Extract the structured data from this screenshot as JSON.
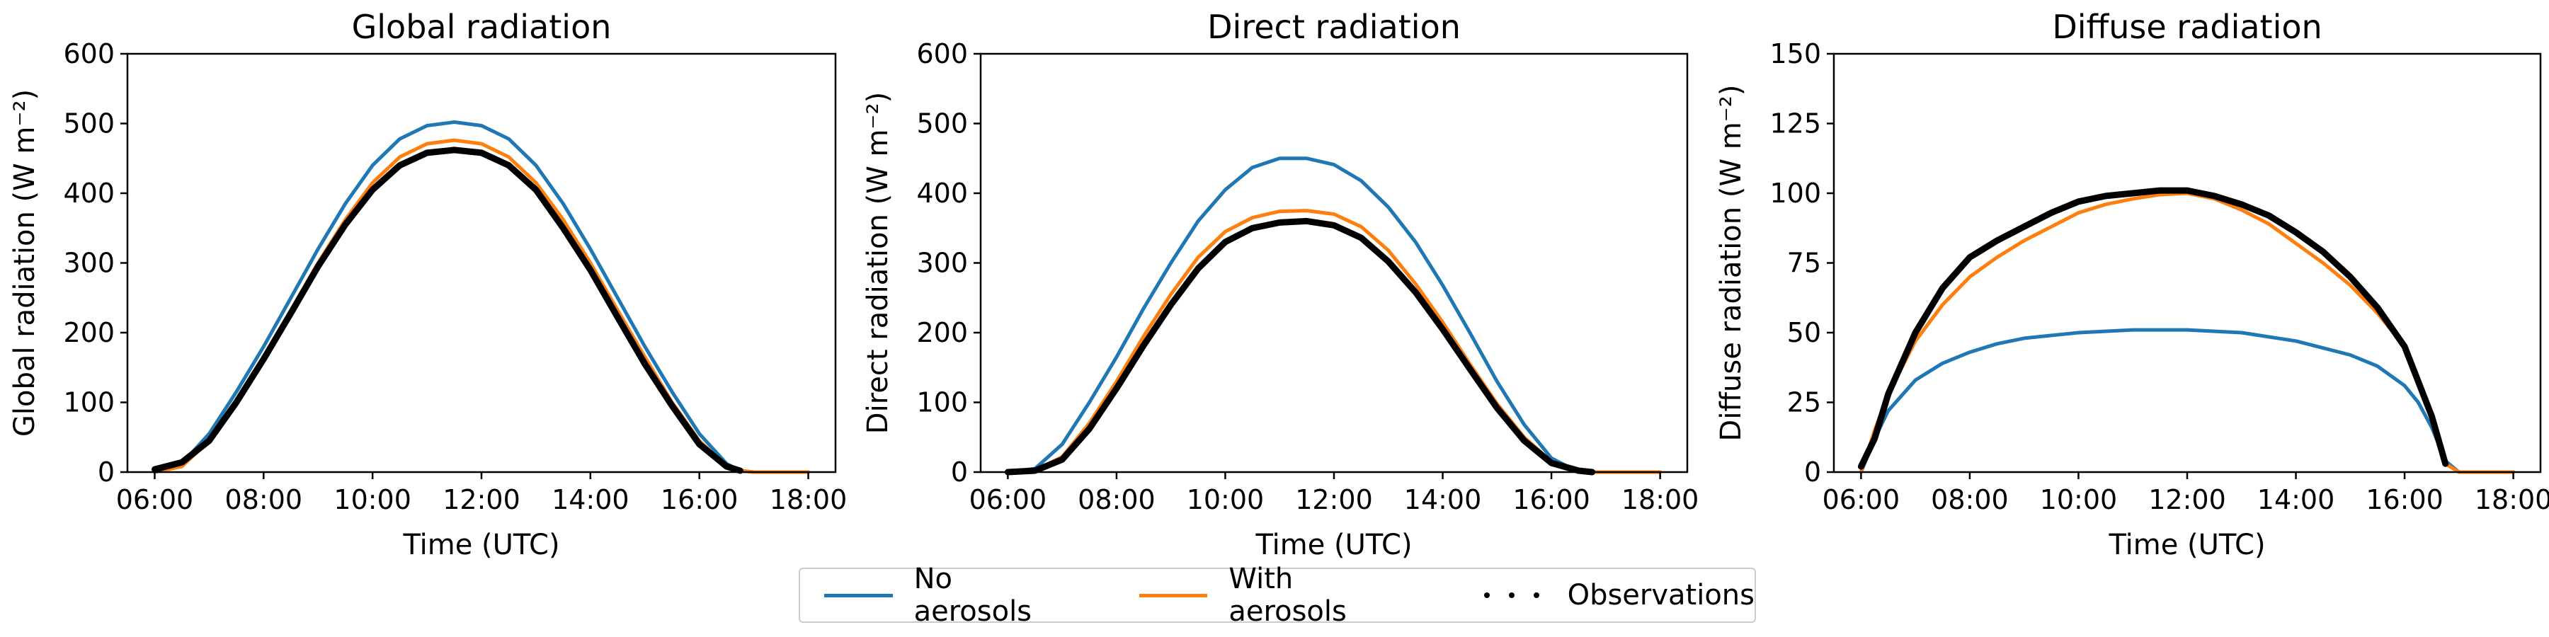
{
  "legend": {
    "entries": [
      {
        "label": "No aerosols",
        "color": "#1f77b4",
        "style": "line"
      },
      {
        "label": "With aerosols",
        "color": "#ff7f0e",
        "style": "line"
      },
      {
        "label": "Observations",
        "color": "#000000",
        "style": "dotted"
      }
    ]
  },
  "chart_data": [
    {
      "type": "line",
      "title": "Global radiation",
      "xlabel": "Time (UTC)",
      "ylabel": "Global radiation (W m⁻²)",
      "xlim": [
        "05:30",
        "18:30"
      ],
      "ylim": [
        0,
        600
      ],
      "xticks": [
        "06:00",
        "08:00",
        "10:00",
        "12:00",
        "14:00",
        "16:00",
        "18:00"
      ],
      "yticks": [
        0,
        100,
        200,
        300,
        400,
        500,
        600
      ],
      "grid": false,
      "series": [
        {
          "name": "No aerosols",
          "color": "#1f77b4",
          "x": [
            "06:00",
            "06:30",
            "07:00",
            "07:30",
            "08:00",
            "08:30",
            "09:00",
            "09:30",
            "10:00",
            "10:30",
            "11:00",
            "11:30",
            "12:00",
            "12:30",
            "13:00",
            "13:30",
            "14:00",
            "14:30",
            "15:00",
            "15:30",
            "16:00",
            "16:30",
            "16:45",
            "17:00",
            "18:00"
          ],
          "y": [
            0,
            12,
            55,
            115,
            180,
            250,
            320,
            385,
            440,
            478,
            497,
            502,
            497,
            478,
            440,
            385,
            320,
            250,
            180,
            115,
            55,
            12,
            2,
            0,
            0
          ]
        },
        {
          "name": "With aerosols",
          "color": "#ff7f0e",
          "x": [
            "06:00",
            "06:30",
            "07:00",
            "07:30",
            "08:00",
            "08:30",
            "09:00",
            "09:30",
            "10:00",
            "10:30",
            "11:00",
            "11:30",
            "12:00",
            "12:30",
            "13:00",
            "13:30",
            "14:00",
            "14:30",
            "15:00",
            "15:30",
            "16:00",
            "16:30",
            "16:45",
            "17:00",
            "18:00"
          ],
          "y": [
            0,
            8,
            45,
            100,
            165,
            232,
            300,
            362,
            415,
            452,
            471,
            476,
            471,
            452,
            415,
            362,
            300,
            232,
            165,
            100,
            45,
            8,
            2,
            0,
            0
          ]
        },
        {
          "name": "Observations",
          "color": "#000000",
          "x": [
            "06:00",
            "06:30",
            "07:00",
            "07:30",
            "08:00",
            "08:30",
            "09:00",
            "09:30",
            "10:00",
            "10:30",
            "11:00",
            "11:30",
            "12:00",
            "12:30",
            "13:00",
            "13:30",
            "14:00",
            "14:30",
            "15:00",
            "15:30",
            "16:00",
            "16:30",
            "16:45"
          ],
          "y": [
            4,
            14,
            45,
            100,
            162,
            228,
            295,
            355,
            405,
            440,
            458,
            462,
            458,
            440,
            405,
            350,
            290,
            222,
            155,
            95,
            40,
            8,
            2
          ]
        }
      ]
    },
    {
      "type": "line",
      "title": "Direct radiation",
      "xlabel": "Time (UTC)",
      "ylabel": "Direct radiation (W m⁻²)",
      "xlim": [
        "05:30",
        "18:30"
      ],
      "ylim": [
        0,
        600
      ],
      "xticks": [
        "06:00",
        "08:00",
        "10:00",
        "12:00",
        "14:00",
        "16:00",
        "18:00"
      ],
      "yticks": [
        0,
        100,
        200,
        300,
        400,
        500,
        600
      ],
      "grid": false,
      "series": [
        {
          "name": "No aerosols",
          "color": "#1f77b4",
          "x": [
            "06:00",
            "06:30",
            "07:00",
            "07:30",
            "08:00",
            "08:30",
            "09:00",
            "09:30",
            "10:00",
            "10:30",
            "11:00",
            "11:30",
            "12:00",
            "12:30",
            "13:00",
            "13:30",
            "14:00",
            "14:30",
            "15:00",
            "15:30",
            "16:00",
            "16:30",
            "17:00",
            "18:00"
          ],
          "y": [
            0,
            5,
            40,
            100,
            165,
            235,
            300,
            360,
            405,
            437,
            450,
            450,
            441,
            418,
            380,
            330,
            268,
            200,
            130,
            68,
            20,
            0,
            0,
            0
          ]
        },
        {
          "name": "With aerosols",
          "color": "#ff7f0e",
          "x": [
            "06:00",
            "06:30",
            "07:00",
            "07:30",
            "08:00",
            "08:30",
            "09:00",
            "09:30",
            "10:00",
            "10:30",
            "11:00",
            "11:30",
            "12:00",
            "12:30",
            "13:00",
            "13:30",
            "14:00",
            "14:30",
            "15:00",
            "15:30",
            "16:00",
            "16:30",
            "16:45",
            "17:00",
            "18:00"
          ],
          "y": [
            0,
            2,
            22,
            70,
            130,
            195,
            255,
            308,
            345,
            365,
            374,
            375,
            370,
            352,
            318,
            270,
            215,
            155,
            98,
            50,
            15,
            2,
            0,
            0,
            0
          ]
        },
        {
          "name": "Observations",
          "color": "#000000",
          "x": [
            "06:00",
            "06:30",
            "07:00",
            "07:30",
            "08:00",
            "08:30",
            "09:00",
            "09:30",
            "10:00",
            "10:30",
            "11:00",
            "11:30",
            "12:00",
            "12:30",
            "13:00",
            "13:30",
            "14:00",
            "14:30",
            "15:00",
            "15:30",
            "16:00",
            "16:30",
            "16:45"
          ],
          "y": [
            0,
            2,
            18,
            62,
            120,
            182,
            240,
            292,
            330,
            350,
            358,
            360,
            354,
            336,
            302,
            258,
            205,
            148,
            92,
            45,
            13,
            2,
            0
          ]
        }
      ]
    },
    {
      "type": "line",
      "title": "Diffuse radiation",
      "xlabel": "Time (UTC)",
      "ylabel": "Diffuse radiation (W m⁻²)",
      "xlim": [
        "05:30",
        "18:30"
      ],
      "ylim": [
        0,
        150
      ],
      "xticks": [
        "06:00",
        "08:00",
        "10:00",
        "12:00",
        "14:00",
        "16:00",
        "18:00"
      ],
      "yticks": [
        0,
        25,
        50,
        75,
        100,
        125,
        150
      ],
      "grid": false,
      "series": [
        {
          "name": "No aerosols",
          "color": "#1f77b4",
          "x": [
            "06:00",
            "06:15",
            "06:30",
            "07:00",
            "07:30",
            "08:00",
            "08:30",
            "09:00",
            "10:00",
            "11:00",
            "11:30",
            "12:00",
            "13:00",
            "14:00",
            "15:00",
            "15:30",
            "16:00",
            "16:15",
            "16:30",
            "16:45",
            "17:00",
            "18:00"
          ],
          "y": [
            0,
            12,
            22,
            33,
            39,
            43,
            46,
            48,
            50,
            51,
            51,
            51,
            50,
            47,
            42,
            38,
            31,
            25,
            16,
            4,
            0,
            0
          ]
        },
        {
          "name": "With aerosols",
          "color": "#ff7f0e",
          "x": [
            "06:00",
            "06:15",
            "06:30",
            "07:00",
            "07:30",
            "08:00",
            "08:30",
            "09:00",
            "09:30",
            "10:00",
            "10:30",
            "11:00",
            "11:30",
            "12:00",
            "12:30",
            "13:00",
            "13:30",
            "14:00",
            "14:30",
            "15:00",
            "15:30",
            "16:00",
            "16:30",
            "16:45",
            "17:00",
            "18:00"
          ],
          "y": [
            0,
            15,
            28,
            47,
            60,
            70,
            77,
            83,
            88,
            93,
            96,
            98,
            99.5,
            100,
            98,
            94,
            89,
            82,
            75,
            67,
            57,
            45,
            20,
            3,
            0,
            0
          ]
        },
        {
          "name": "Observations",
          "color": "#000000",
          "x": [
            "06:00",
            "06:15",
            "06:30",
            "07:00",
            "07:30",
            "08:00",
            "08:30",
            "09:00",
            "09:30",
            "10:00",
            "10:30",
            "11:00",
            "11:30",
            "12:00",
            "12:30",
            "13:00",
            "13:30",
            "14:00",
            "14:30",
            "15:00",
            "15:30",
            "16:00",
            "16:30",
            "16:45"
          ],
          "y": [
            2,
            12,
            28,
            50,
            66,
            77,
            83,
            88,
            93,
            97,
            99,
            100,
            101,
            101,
            99,
            96,
            92,
            86,
            79,
            70,
            59,
            45,
            20,
            3
          ]
        }
      ]
    }
  ]
}
